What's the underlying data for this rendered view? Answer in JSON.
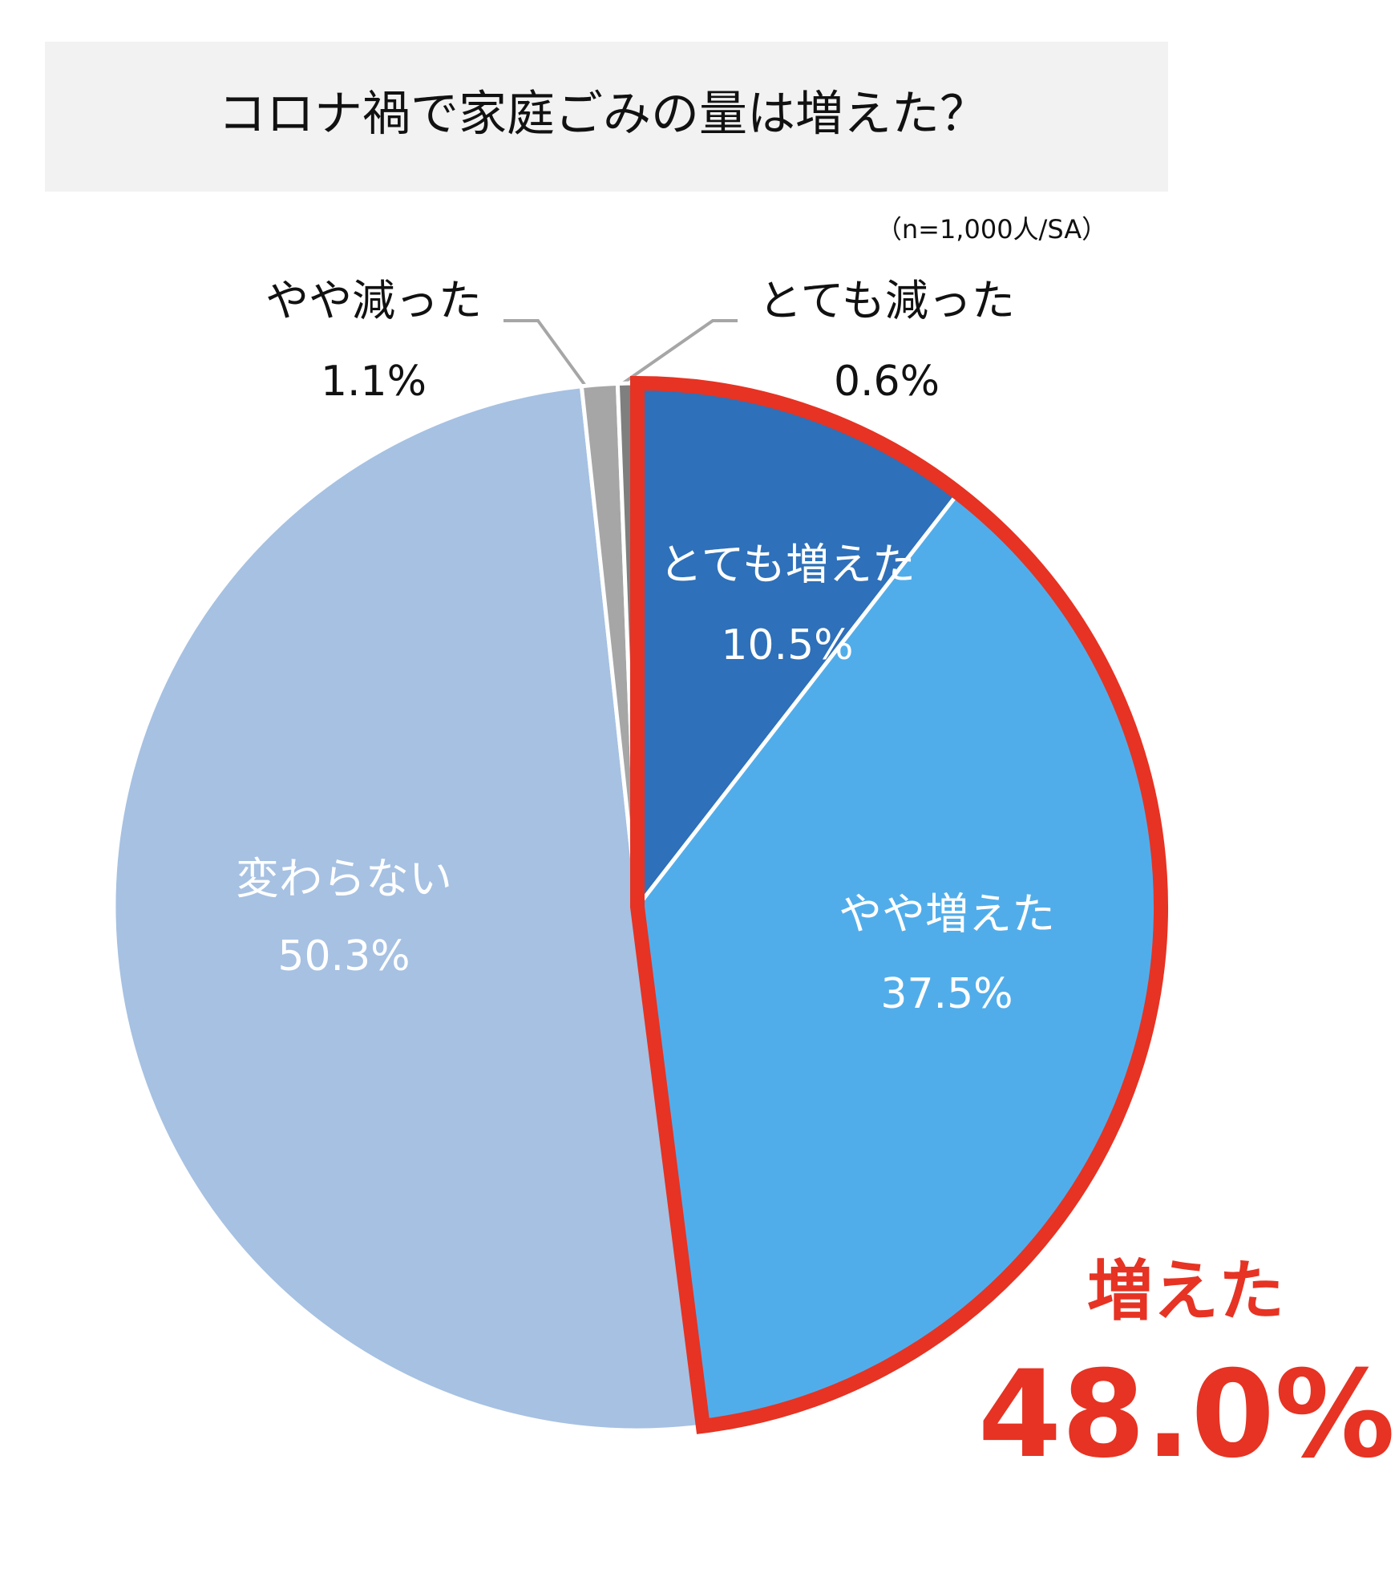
{
  "chart_data": {
    "type": "pie",
    "title": "コロナ禍で家庭ごみの量は増えた？",
    "note": "（n=1,000人/SA）",
    "categories": [
      "とても増えた",
      "やや増えた",
      "変わらない",
      "やや減った",
      "とても減った"
    ],
    "values": [
      10.5,
      37.5,
      50.3,
      1.1,
      0.6
    ],
    "value_labels": [
      "10.5%",
      "37.5%",
      "50.3%",
      "1.1%",
      "0.6%"
    ],
    "colors": [
      "#2e70b9",
      "#51adea",
      "#a6c1e2",
      "#a6a6a6",
      "#7f7f7f"
    ],
    "highlight": {
      "label": "増えた",
      "value_label": "48.0%",
      "color": "#e63323"
    }
  }
}
